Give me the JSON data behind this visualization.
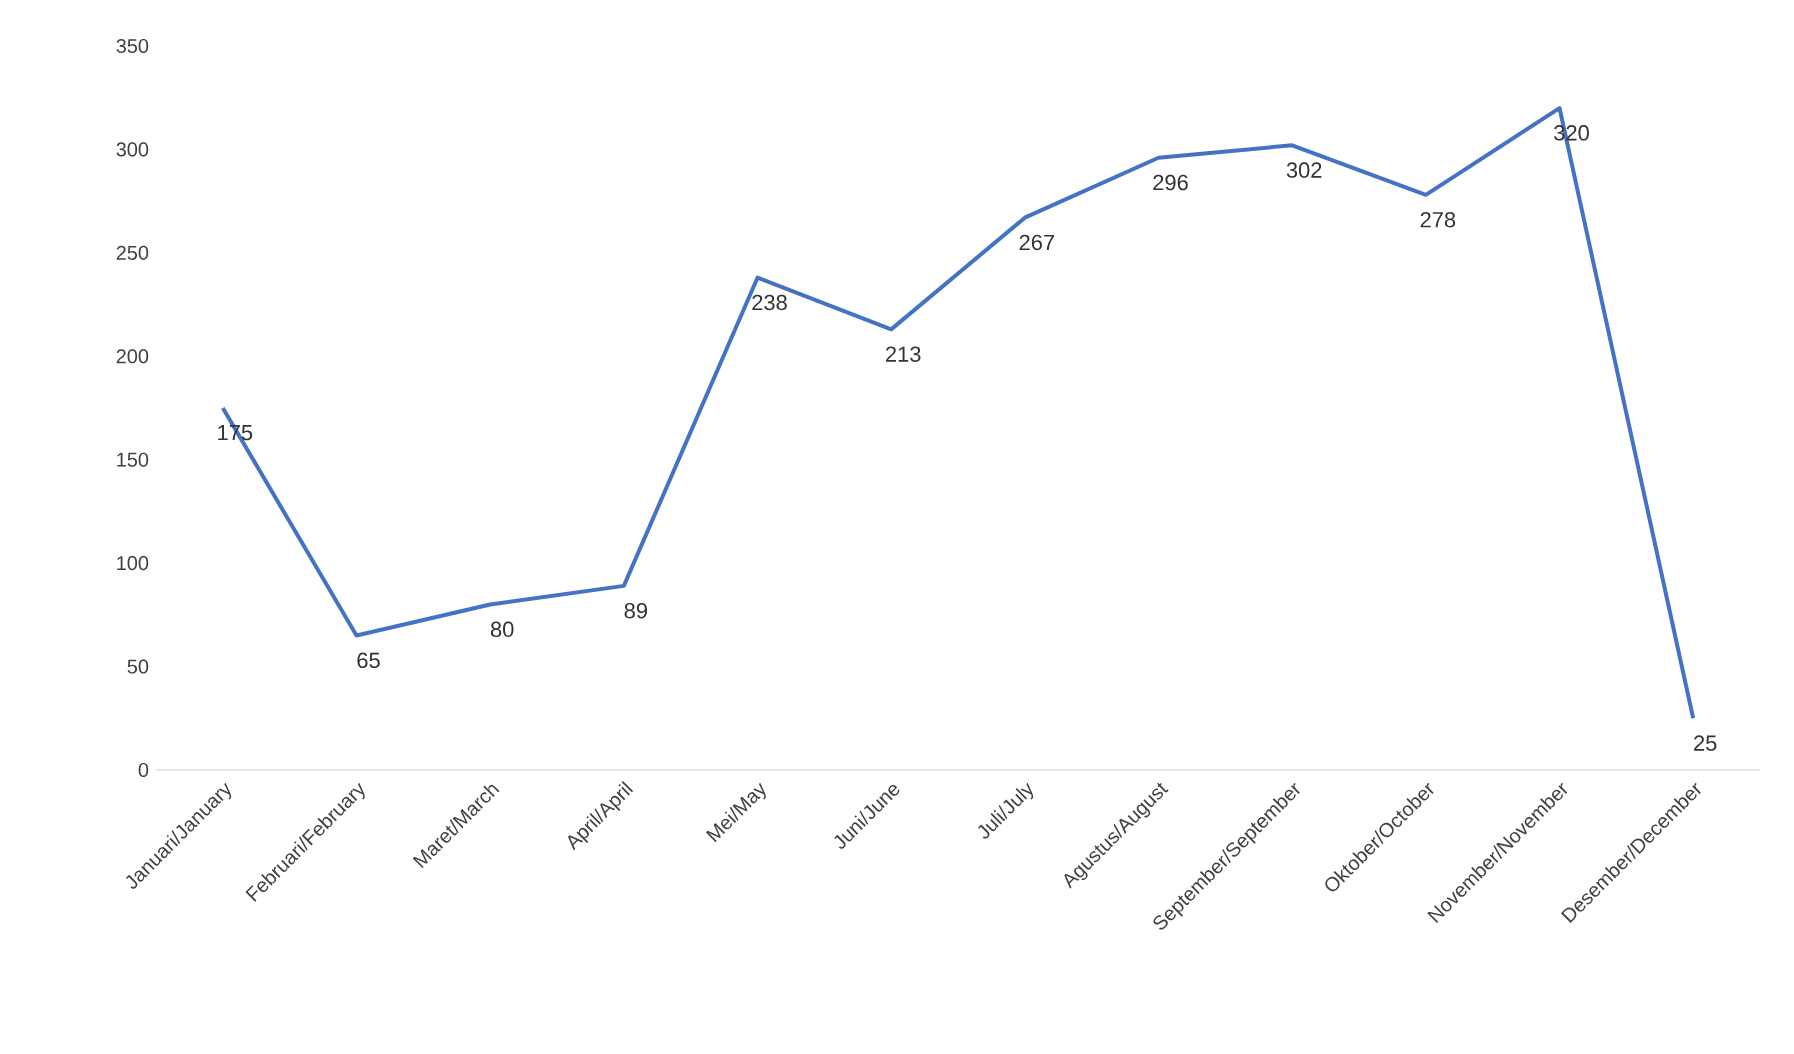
{
  "chart_data": {
    "type": "line",
    "categories": [
      "Januari/January",
      "Februari/February",
      "Maret/March",
      "April/April",
      "Mei/May",
      "Juni/June",
      "Juli/July",
      "Agustus/August",
      "September/September",
      "Oktober/October",
      "November/November",
      "Desember/December"
    ],
    "values": [
      175,
      65,
      80,
      89,
      238,
      213,
      267,
      296,
      302,
      278,
      320,
      25
    ],
    "color": "#4472c4",
    "ylim": [
      0,
      350
    ],
    "yticks": [
      0,
      50,
      100,
      150,
      200,
      250,
      300,
      350
    ],
    "data_labels": true,
    "marker": "none",
    "line_style": "solid"
  }
}
